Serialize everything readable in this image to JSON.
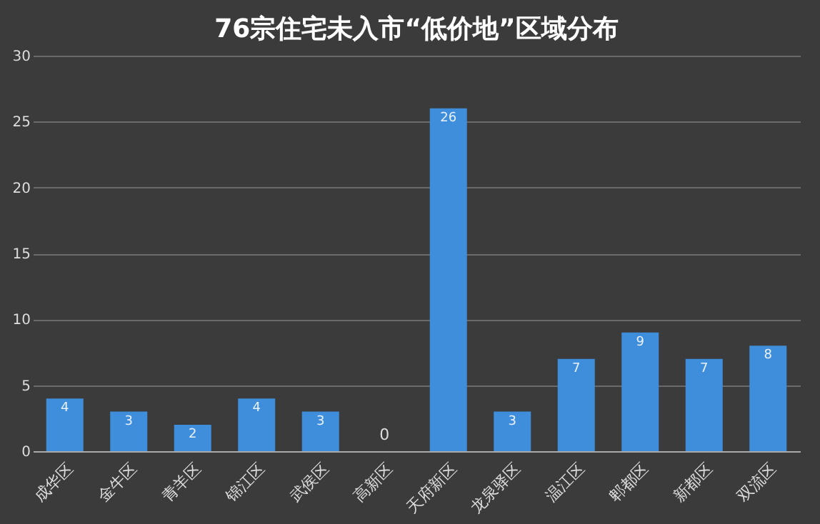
{
  "chart_data": {
    "type": "bar",
    "title": "76宗住宅未入市“低价地”区域分布",
    "categories": [
      "成华区",
      "金牛区",
      "青羊区",
      "锦江区",
      "武侯区",
      "高新区",
      "天府新区",
      "龙泉驿区",
      "温江区",
      "郫都区",
      "新都区",
      "双流区"
    ],
    "values": [
      4,
      3,
      2,
      4,
      3,
      0,
      26,
      3,
      7,
      9,
      7,
      8
    ],
    "color": "#3f8edb",
    "ylim": [
      0,
      30
    ],
    "yticks": [
      0,
      5,
      10,
      15,
      20,
      25,
      30
    ],
    "grid": "y",
    "data_labels": true
  }
}
